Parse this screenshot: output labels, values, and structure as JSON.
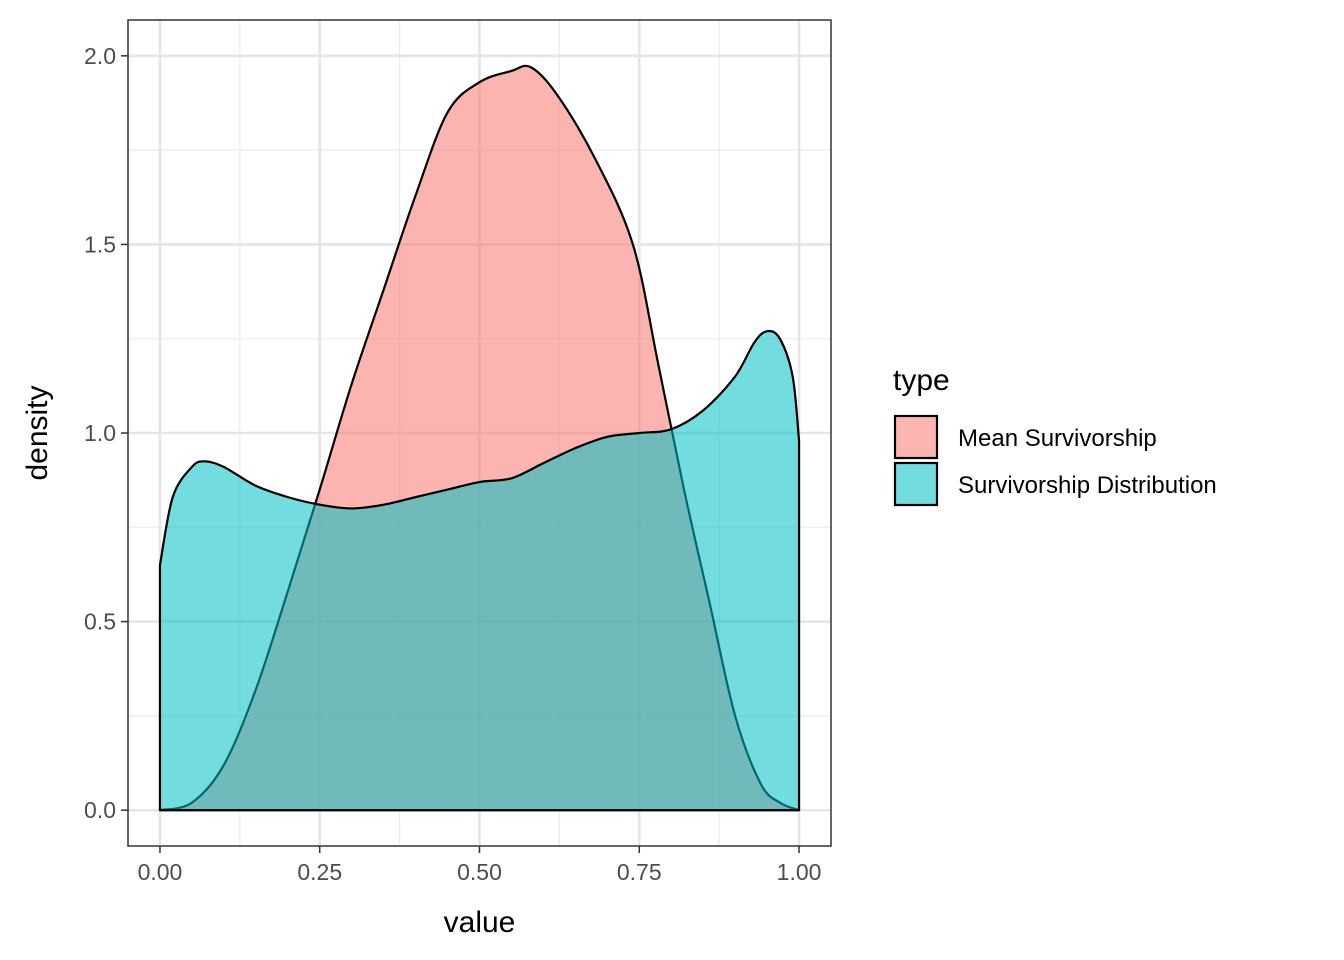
{
  "chart_data": {
    "type": "area",
    "xlabel": "value",
    "ylabel": "density",
    "xlim": [
      -0.05,
      1.05
    ],
    "ylim": [
      -0.095,
      2.095
    ],
    "x_ticks": [
      0.0,
      0.25,
      0.5,
      0.75,
      1.0
    ],
    "x_tick_labels": [
      "0.00",
      "0.25",
      "0.50",
      "0.75",
      "1.00"
    ],
    "y_ticks": [
      0.0,
      0.5,
      1.0,
      1.5,
      2.0
    ],
    "y_tick_labels": [
      "0.0",
      "0.5",
      "1.0",
      "1.5",
      "2.0"
    ],
    "grid": true,
    "legend": {
      "title": "type",
      "position": "right"
    },
    "series": [
      {
        "name": "Mean Survivorship",
        "color": "#F8766D",
        "x": [
          0.0,
          0.05,
          0.1,
          0.15,
          0.2,
          0.25,
          0.3,
          0.35,
          0.4,
          0.45,
          0.5,
          0.55,
          0.58,
          0.62,
          0.68,
          0.74,
          0.78,
          0.82,
          0.86,
          0.9,
          0.94,
          0.97,
          1.0
        ],
        "y": [
          0.0,
          0.02,
          0.12,
          0.32,
          0.58,
          0.85,
          1.13,
          1.38,
          1.63,
          1.85,
          1.93,
          1.96,
          1.97,
          1.9,
          1.73,
          1.5,
          1.18,
          0.85,
          0.55,
          0.25,
          0.07,
          0.02,
          0.0
        ]
      },
      {
        "name": "Survivorship Distribution",
        "color": "#00BFC4",
        "x": [
          0.0,
          0.02,
          0.05,
          0.07,
          0.1,
          0.15,
          0.2,
          0.25,
          0.3,
          0.35,
          0.4,
          0.45,
          0.5,
          0.55,
          0.6,
          0.65,
          0.7,
          0.75,
          0.8,
          0.85,
          0.9,
          0.93,
          0.95,
          0.97,
          0.99,
          1.0
        ],
        "y": [
          0.65,
          0.83,
          0.91,
          0.925,
          0.91,
          0.86,
          0.83,
          0.81,
          0.8,
          0.81,
          0.83,
          0.85,
          0.87,
          0.88,
          0.92,
          0.96,
          0.99,
          1.0,
          1.01,
          1.06,
          1.15,
          1.24,
          1.27,
          1.25,
          1.15,
          0.98
        ]
      }
    ]
  }
}
